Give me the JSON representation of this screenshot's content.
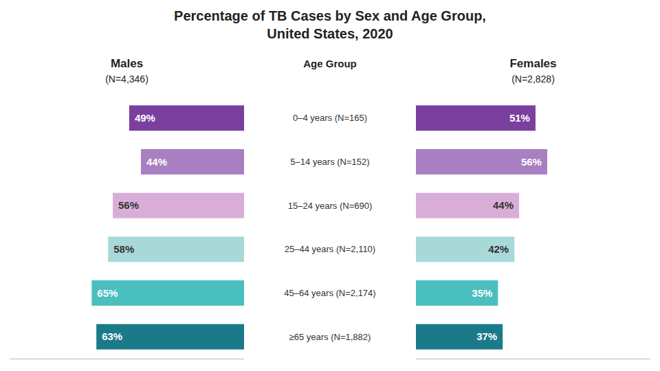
{
  "chart_data": {
    "type": "bar",
    "orientation": "horizontal",
    "title": "Percentage of TB Cases by Sex and Age Group,",
    "subtitle": "United States, 2020",
    "y_label": "Age Group",
    "annotations": [
      "(N=4,346)",
      "(N=2,828)"
    ],
    "categories": [
      "0–4 years (N=165)",
      "5–14 years (N=152)",
      "15–24 years (N=690)",
      "25–44 years (N=2,110)",
      "45–64 years (N=2,174)",
      "≥65 years (N=1,882)"
    ],
    "series": [
      {
        "name": "Males",
        "values": [
          49,
          44,
          56,
          58,
          65,
          63
        ],
        "value_labels": [
          "49%",
          "44%",
          "56%",
          "58%",
          "65%",
          "63%"
        ],
        "colors": [
          "#7b3f9e",
          "#a87fc0",
          "#d8aed8",
          "#a8d8d8",
          "#4abfbf",
          "#1a7a8a"
        ]
      },
      {
        "name": "Females",
        "values": [
          51,
          56,
          44,
          42,
          35,
          37
        ],
        "value_labels": [
          "51%",
          "56%",
          "44%",
          "42%",
          "35%",
          "37%"
        ],
        "colors": [
          "#7b3f9e",
          "#a87fc0",
          "#d8aed8",
          "#a8d8d8",
          "#4abfbf",
          "#1a7a8a"
        ]
      }
    ],
    "xlim": [
      0,
      100
    ],
    "data_labels": true,
    "tick_labels": false,
    "grid": false
  }
}
